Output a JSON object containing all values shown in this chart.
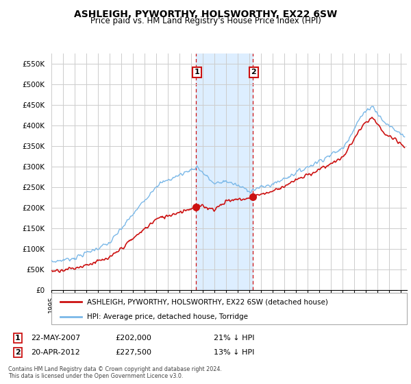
{
  "title": "ASHLEIGH, PYWORTHY, HOLSWORTHY, EX22 6SW",
  "subtitle": "Price paid vs. HM Land Registry's House Price Index (HPI)",
  "title_fontsize": 10,
  "subtitle_fontsize": 8.5,
  "ylim": [
    0,
    575000
  ],
  "xlim_start": 1995.0,
  "xlim_end": 2025.5,
  "background_color": "#ffffff",
  "grid_color": "#cccccc",
  "hpi_color": "#7ab8e8",
  "sale_color": "#cc1111",
  "highlight_color": "#ddeeff",
  "highlight_x1": 2007.38,
  "highlight_x2": 2012.25,
  "sale1_x": 2007.38,
  "sale1_y": 202000,
  "sale2_x": 2012.25,
  "sale2_y": 227500,
  "legend_label_sale": "ASHLEIGH, PYWORTHY, HOLSWORTHY, EX22 6SW (detached house)",
  "legend_label_hpi": "HPI: Average price, detached house, Torridge",
  "annotation1_label": "1",
  "annotation2_label": "2",
  "footer1": "Contains HM Land Registry data © Crown copyright and database right 2024.",
  "footer2": "This data is licensed under the Open Government Licence v3.0.",
  "table_row1": [
    "1",
    "22-MAY-2007",
    "£202,000",
    "21% ↓ HPI"
  ],
  "table_row2": [
    "2",
    "20-APR-2012",
    "£227,500",
    "13% ↓ HPI"
  ],
  "yticks": [
    0,
    50000,
    100000,
    150000,
    200000,
    250000,
    300000,
    350000,
    400000,
    450000,
    500000,
    550000
  ],
  "ytick_labels": [
    "£0",
    "£50K",
    "£100K",
    "£150K",
    "£200K",
    "£250K",
    "£300K",
    "£350K",
    "£400K",
    "£450K",
    "£500K",
    "£550K"
  ]
}
